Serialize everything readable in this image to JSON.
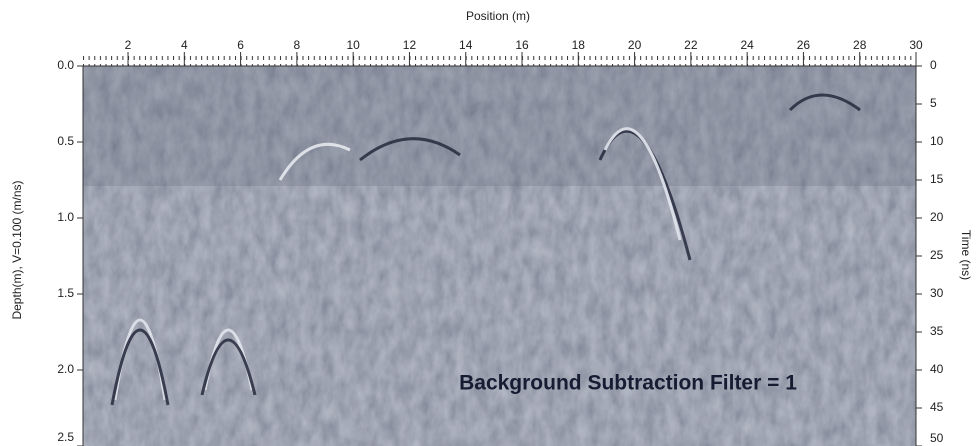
{
  "chart_data": {
    "type": "radargram",
    "x_label": "Position (m)",
    "y_label": "Depth(m), V=0.100 (m/ns)",
    "y2_label": "Time (ns)",
    "annotation": "Background Subtraction Filter = 1",
    "xlim": [
      0.4,
      30
    ],
    "xticks": [
      2,
      4,
      6,
      8,
      10,
      12,
      14,
      16,
      18,
      20,
      22,
      24,
      26,
      28,
      30
    ],
    "ylim": [
      0,
      2.5
    ],
    "yticks": [
      {
        "value": 0,
        "label": "0.0"
      },
      0.5,
      {
        "value": 1,
        "label": "1.0"
      },
      1.5,
      {
        "value": 2,
        "label": "2.0"
      },
      2.5
    ],
    "y2lim": [
      0,
      50
    ],
    "y2ticks": [
      0,
      5,
      10,
      15,
      20,
      25,
      30,
      35,
      40,
      45,
      50
    ]
  }
}
